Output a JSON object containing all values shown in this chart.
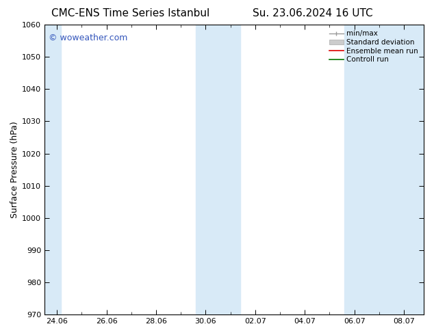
{
  "title_left": "CMC-ENS Time Series Istanbul",
  "title_right": "Su. 23.06.2024 16 UTC",
  "ylabel": "Surface Pressure (hPa)",
  "ylim": [
    970,
    1060
  ],
  "yticks": [
    970,
    980,
    990,
    1000,
    1010,
    1020,
    1030,
    1040,
    1050,
    1060
  ],
  "xtick_labels": [
    "24.06",
    "26.06",
    "28.06",
    "30.06",
    "02.07",
    "04.07",
    "06.07",
    "08.07"
  ],
  "xtick_positions": [
    0,
    2,
    4,
    6,
    8,
    10,
    12,
    14
  ],
  "xlim": [
    -0.5,
    14.8
  ],
  "shaded_bands": [
    {
      "x_start": -0.5,
      "x_end": 0.15
    },
    {
      "x_start": 5.6,
      "x_end": 7.4
    },
    {
      "x_start": 11.6,
      "x_end": 14.8
    }
  ],
  "band_color": "#d8eaf7",
  "watermark": "© woweather.com",
  "watermark_color": "#3355bb",
  "legend_labels": [
    "min/max",
    "Standard deviation",
    "Ensemble mean run",
    "Controll run"
  ],
  "legend_colors_line": [
    "#999999",
    "#cccccc",
    "#dd0000",
    "#007700"
  ],
  "bg_color": "#ffffff",
  "plot_bg_color": "#ffffff",
  "title_fontsize": 11,
  "ylabel_fontsize": 9,
  "tick_fontsize": 8,
  "watermark_fontsize": 9,
  "legend_fontsize": 7.5
}
